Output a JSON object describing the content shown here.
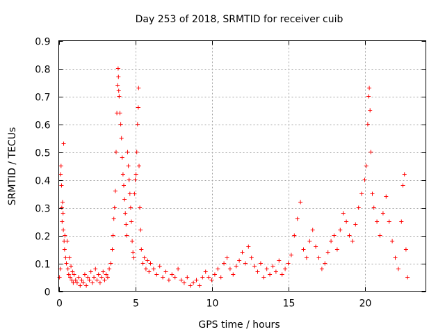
{
  "chart_data": {
    "type": "scatter",
    "title": "Day 253 of 2018, SRMTID for receiver cuib",
    "xlabel": "GPS time / hours",
    "ylabel": "SRMTID / TECUs",
    "xlim": [
      0,
      24
    ],
    "ylim": [
      0,
      0.9
    ],
    "xticks": [
      0,
      5,
      10,
      15,
      20
    ],
    "xtick_labels": [
      "0",
      "5",
      "10",
      "15",
      "20"
    ],
    "yticks": [
      0,
      0.1,
      0.2,
      0.3,
      0.4,
      0.5,
      0.6,
      0.7,
      0.8,
      0.9
    ],
    "ytick_labels": [
      "0",
      "0.1",
      "0.2",
      "0.3",
      "0.4",
      "0.5",
      "0.6",
      "0.7",
      "0.8",
      "0.9"
    ],
    "grid": true,
    "marker": "+",
    "color": "#ff0000",
    "series": [
      {
        "name": "SRMTID",
        "points": [
          [
            0.05,
            0.05
          ],
          [
            0.1,
            0.08
          ],
          [
            0.12,
            0.42
          ],
          [
            0.15,
            0.45
          ],
          [
            0.18,
            0.38
          ],
          [
            0.2,
            0.3
          ],
          [
            0.22,
            0.25
          ],
          [
            0.25,
            0.32
          ],
          [
            0.28,
            0.28
          ],
          [
            0.3,
            0.22
          ],
          [
            0.32,
            0.53
          ],
          [
            0.35,
            0.18
          ],
          [
            0.38,
            0.15
          ],
          [
            0.4,
            0.2
          ],
          [
            0.45,
            0.12
          ],
          [
            0.5,
            0.1
          ],
          [
            0.55,
            0.18
          ],
          [
            0.6,
            0.08
          ],
          [
            0.65,
            0.06
          ],
          [
            0.7,
            0.12
          ],
          [
            0.75,
            0.05
          ],
          [
            0.8,
            0.09
          ],
          [
            0.85,
            0.04
          ],
          [
            0.9,
            0.07
          ],
          [
            0.95,
            0.03
          ],
          [
            1.0,
            0.06
          ],
          [
            1.1,
            0.04
          ],
          [
            1.2,
            0.03
          ],
          [
            1.3,
            0.05
          ],
          [
            1.4,
            0.02
          ],
          [
            1.5,
            0.04
          ],
          [
            1.6,
            0.03
          ],
          [
            1.7,
            0.06
          ],
          [
            1.8,
            0.02
          ],
          [
            1.9,
            0.05
          ],
          [
            2.0,
            0.04
          ],
          [
            2.1,
            0.07
          ],
          [
            2.2,
            0.03
          ],
          [
            2.3,
            0.05
          ],
          [
            2.4,
            0.08
          ],
          [
            2.5,
            0.04
          ],
          [
            2.6,
            0.06
          ],
          [
            2.7,
            0.03
          ],
          [
            2.8,
            0.05
          ],
          [
            2.9,
            0.07
          ],
          [
            3.0,
            0.04
          ],
          [
            3.1,
            0.06
          ],
          [
            3.2,
            0.05
          ],
          [
            3.3,
            0.08
          ],
          [
            3.4,
            0.1
          ],
          [
            3.5,
            0.15
          ],
          [
            3.55,
            0.2
          ],
          [
            3.6,
            0.26
          ],
          [
            3.65,
            0.3
          ],
          [
            3.7,
            0.36
          ],
          [
            3.75,
            0.5
          ],
          [
            3.8,
            0.64
          ],
          [
            3.85,
            0.74
          ],
          [
            3.88,
            0.8
          ],
          [
            3.9,
            0.77
          ],
          [
            3.92,
            0.72
          ],
          [
            3.95,
            0.7
          ],
          [
            4.0,
            0.64
          ],
          [
            4.05,
            0.6
          ],
          [
            4.1,
            0.55
          ],
          [
            4.15,
            0.48
          ],
          [
            4.2,
            0.42
          ],
          [
            4.25,
            0.38
          ],
          [
            4.3,
            0.33
          ],
          [
            4.35,
            0.28
          ],
          [
            4.4,
            0.24
          ],
          [
            4.45,
            0.2
          ],
          [
            4.5,
            0.5
          ],
          [
            4.55,
            0.45
          ],
          [
            4.6,
            0.4
          ],
          [
            4.65,
            0.35
          ],
          [
            4.7,
            0.3
          ],
          [
            4.75,
            0.25
          ],
          [
            4.8,
            0.18
          ],
          [
            4.85,
            0.14
          ],
          [
            4.9,
            0.12
          ],
          [
            4.95,
            0.35
          ],
          [
            5.0,
            0.4
          ],
          [
            5.05,
            0.42
          ],
          [
            5.1,
            0.5
          ],
          [
            5.15,
            0.6
          ],
          [
            5.2,
            0.66
          ],
          [
            5.22,
            0.73
          ],
          [
            5.25,
            0.45
          ],
          [
            5.3,
            0.3
          ],
          [
            5.35,
            0.22
          ],
          [
            5.4,
            0.15
          ],
          [
            5.5,
            0.1
          ],
          [
            5.6,
            0.12
          ],
          [
            5.7,
            0.08
          ],
          [
            5.8,
            0.11
          ],
          [
            5.9,
            0.07
          ],
          [
            6.0,
            0.1
          ],
          [
            6.2,
            0.08
          ],
          [
            6.4,
            0.06
          ],
          [
            6.6,
            0.09
          ],
          [
            6.8,
            0.05
          ],
          [
            7.0,
            0.07
          ],
          [
            7.2,
            0.04
          ],
          [
            7.4,
            0.06
          ],
          [
            7.6,
            0.05
          ],
          [
            7.8,
            0.08
          ],
          [
            8.0,
            0.04
          ],
          [
            8.2,
            0.03
          ],
          [
            8.4,
            0.05
          ],
          [
            8.6,
            0.02
          ],
          [
            8.8,
            0.03
          ],
          [
            9.0,
            0.04
          ],
          [
            9.2,
            0.02
          ],
          [
            9.4,
            0.05
          ],
          [
            9.6,
            0.07
          ],
          [
            9.8,
            0.05
          ],
          [
            10.0,
            0.04
          ],
          [
            10.2,
            0.06
          ],
          [
            10.4,
            0.08
          ],
          [
            10.6,
            0.05
          ],
          [
            10.8,
            0.1
          ],
          [
            11.0,
            0.12
          ],
          [
            11.2,
            0.08
          ],
          [
            11.4,
            0.06
          ],
          [
            11.6,
            0.09
          ],
          [
            11.8,
            0.11
          ],
          [
            12.0,
            0.14
          ],
          [
            12.2,
            0.1
          ],
          [
            12.4,
            0.16
          ],
          [
            12.6,
            0.12
          ],
          [
            12.8,
            0.09
          ],
          [
            13.0,
            0.07
          ],
          [
            13.2,
            0.1
          ],
          [
            13.4,
            0.05
          ],
          [
            13.6,
            0.08
          ],
          [
            13.8,
            0.06
          ],
          [
            14.0,
            0.09
          ],
          [
            14.2,
            0.07
          ],
          [
            14.4,
            0.11
          ],
          [
            14.6,
            0.06
          ],
          [
            14.8,
            0.08
          ],
          [
            15.0,
            0.1
          ],
          [
            15.2,
            0.13
          ],
          [
            15.4,
            0.2
          ],
          [
            15.6,
            0.26
          ],
          [
            15.8,
            0.32
          ],
          [
            16.0,
            0.15
          ],
          [
            16.2,
            0.12
          ],
          [
            16.4,
            0.18
          ],
          [
            16.6,
            0.22
          ],
          [
            16.8,
            0.16
          ],
          [
            17.0,
            0.12
          ],
          [
            17.2,
            0.08
          ],
          [
            17.4,
            0.1
          ],
          [
            17.6,
            0.14
          ],
          [
            17.8,
            0.18
          ],
          [
            18.0,
            0.2
          ],
          [
            18.2,
            0.15
          ],
          [
            18.4,
            0.22
          ],
          [
            18.6,
            0.28
          ],
          [
            18.8,
            0.25
          ],
          [
            19.0,
            0.2
          ],
          [
            19.2,
            0.18
          ],
          [
            19.4,
            0.24
          ],
          [
            19.6,
            0.3
          ],
          [
            19.8,
            0.35
          ],
          [
            20.0,
            0.4
          ],
          [
            20.1,
            0.45
          ],
          [
            20.2,
            0.6
          ],
          [
            20.25,
            0.7
          ],
          [
            20.3,
            0.73
          ],
          [
            20.35,
            0.65
          ],
          [
            20.4,
            0.5
          ],
          [
            20.5,
            0.35
          ],
          [
            20.6,
            0.3
          ],
          [
            20.8,
            0.25
          ],
          [
            21.0,
            0.2
          ],
          [
            21.2,
            0.28
          ],
          [
            21.4,
            0.34
          ],
          [
            21.6,
            0.25
          ],
          [
            21.8,
            0.18
          ],
          [
            22.0,
            0.12
          ],
          [
            22.2,
            0.08
          ],
          [
            22.4,
            0.25
          ],
          [
            22.5,
            0.38
          ],
          [
            22.6,
            0.42
          ],
          [
            22.7,
            0.15
          ],
          [
            22.8,
            0.05
          ]
        ]
      }
    ]
  }
}
